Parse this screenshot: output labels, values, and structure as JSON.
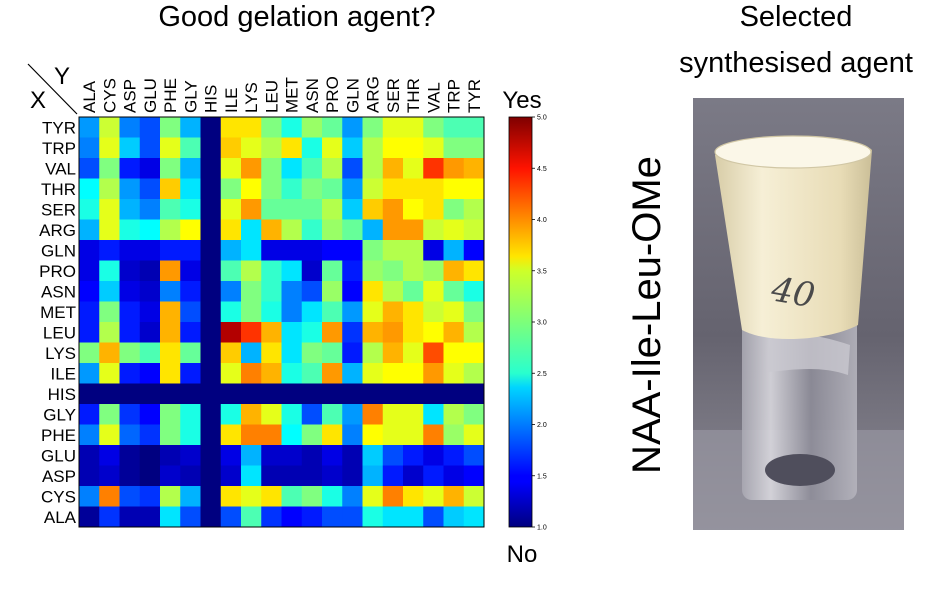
{
  "chart_data": {
    "type": "heatmap",
    "title": "Good gelation agent?",
    "x_axis_symbol": "Y",
    "y_axis_symbol": "X",
    "x": [
      "ALA",
      "CYS",
      "ASP",
      "GLU",
      "PHE",
      "GLY",
      "HIS",
      "ILE",
      "LYS",
      "LEU",
      "MET",
      "ASN",
      "PRO",
      "GLN",
      "ARG",
      "SER",
      "THR",
      "VAL",
      "TRP",
      "TYR"
    ],
    "y": [
      "TYR",
      "TRP",
      "VAL",
      "THR",
      "SER",
      "ARG",
      "GLN",
      "PRO",
      "ASN",
      "MET",
      "LEU",
      "LYS",
      "ILE",
      "HIS",
      "GLY",
      "PHE",
      "GLU",
      "ASP",
      "CYS",
      "ALA"
    ],
    "values": [
      [
        2.1,
        3.3,
        2.0,
        1.8,
        3.0,
        2.2,
        1.0,
        3.6,
        3.6,
        3.0,
        2.6,
        3.1,
        2.9,
        2.1,
        3.0,
        3.4,
        3.4,
        3.0,
        2.8,
        2.8
      ],
      [
        2.0,
        3.4,
        2.3,
        1.8,
        3.4,
        2.8,
        1.0,
        3.7,
        3.4,
        3.2,
        3.6,
        2.6,
        3.4,
        2.3,
        3.2,
        3.5,
        3.5,
        3.4,
        3.0,
        3.0
      ],
      [
        1.8,
        3.0,
        1.6,
        1.4,
        3.0,
        2.2,
        1.0,
        3.4,
        3.9,
        3.0,
        2.4,
        2.8,
        3.2,
        1.8,
        3.2,
        3.8,
        3.4,
        4.3,
        3.9,
        3.8
      ],
      [
        2.5,
        3.2,
        2.1,
        1.8,
        3.7,
        2.4,
        1.0,
        3.0,
        3.5,
        3.0,
        2.7,
        3.0,
        2.9,
        2.1,
        3.3,
        3.6,
        3.6,
        3.6,
        3.5,
        3.5
      ],
      [
        2.6,
        3.4,
        2.2,
        2.0,
        2.8,
        2.6,
        1.0,
        3.4,
        3.9,
        2.9,
        2.9,
        2.9,
        3.2,
        2.3,
        3.7,
        3.9,
        3.5,
        3.6,
        3.0,
        3.2
      ],
      [
        2.2,
        3.4,
        2.6,
        2.5,
        3.2,
        3.5,
        1.0,
        3.6,
        2.4,
        3.8,
        3.2,
        2.7,
        3.1,
        2.9,
        2.2,
        3.9,
        3.9,
        3.3,
        3.4,
        3.3
      ],
      [
        1.4,
        1.6,
        1.4,
        1.4,
        1.6,
        1.6,
        1.0,
        2.2,
        2.4,
        1.4,
        1.4,
        1.4,
        1.5,
        1.5,
        3.0,
        3.2,
        3.2,
        1.4,
        2.2,
        1.5
      ],
      [
        1.4,
        2.6,
        1.3,
        1.2,
        3.9,
        1.4,
        1.0,
        2.8,
        3.2,
        2.7,
        2.4,
        1.3,
        2.9,
        1.6,
        3.1,
        3.0,
        3.2,
        3.1,
        3.8,
        3.6
      ],
      [
        1.5,
        2.3,
        1.4,
        1.3,
        2.0,
        1.6,
        1.0,
        2.0,
        3.0,
        2.7,
        2.0,
        1.8,
        3.1,
        1.5,
        3.6,
        3.2,
        2.9,
        3.4,
        2.9,
        2.6
      ],
      [
        1.6,
        3.0,
        1.6,
        1.4,
        3.8,
        1.8,
        1.0,
        2.6,
        3.0,
        2.6,
        2.0,
        2.4,
        2.8,
        2.1,
        3.4,
        3.8,
        3.6,
        3.3,
        3.4,
        3.0
      ],
      [
        1.6,
        3.2,
        1.6,
        1.3,
        3.8,
        1.6,
        1.0,
        4.8,
        4.3,
        3.8,
        2.4,
        2.6,
        3.9,
        1.7,
        3.8,
        3.9,
        3.6,
        3.5,
        3.8,
        3.2
      ],
      [
        3.0,
        3.8,
        3.0,
        2.8,
        3.6,
        2.9,
        1.0,
        3.7,
        2.2,
        3.6,
        2.4,
        3.0,
        2.9,
        1.6,
        3.2,
        3.8,
        3.4,
        4.2,
        3.5,
        3.5
      ],
      [
        2.1,
        3.4,
        1.6,
        1.5,
        3.6,
        1.6,
        1.0,
        3.4,
        4.0,
        3.8,
        2.6,
        2.8,
        3.9,
        2.2,
        3.4,
        3.5,
        3.5,
        3.9,
        3.4,
        3.2
      ],
      [
        1.0,
        1.0,
        1.0,
        1.0,
        1.0,
        1.0,
        1.0,
        1.0,
        1.0,
        1.0,
        1.0,
        1.0,
        1.0,
        1.0,
        1.0,
        1.0,
        1.0,
        1.0,
        1.0,
        1.0
      ],
      [
        1.6,
        3.0,
        1.7,
        1.5,
        3.0,
        2.6,
        1.0,
        2.6,
        3.8,
        3.4,
        2.6,
        1.8,
        2.8,
        2.1,
        4.0,
        3.4,
        3.4,
        2.4,
        3.2,
        3.0
      ],
      [
        2.0,
        3.4,
        1.9,
        1.7,
        3.0,
        2.6,
        1.0,
        3.6,
        4.0,
        4.0,
        2.5,
        3.0,
        3.6,
        2.0,
        3.5,
        3.4,
        3.4,
        4.0,
        3.1,
        3.4
      ],
      [
        1.2,
        1.4,
        1.1,
        1.0,
        1.2,
        1.3,
        1.0,
        1.4,
        2.2,
        1.3,
        1.3,
        1.2,
        1.4,
        1.2,
        2.3,
        1.8,
        1.6,
        1.4,
        1.6,
        1.8
      ],
      [
        1.2,
        1.3,
        1.1,
        1.0,
        1.3,
        1.2,
        1.0,
        1.3,
        2.4,
        1.2,
        1.2,
        1.2,
        1.3,
        1.2,
        2.2,
        1.6,
        1.3,
        1.6,
        1.4,
        1.5
      ],
      [
        2.0,
        4.0,
        1.8,
        1.7,
        3.2,
        2.2,
        1.0,
        3.6,
        3.4,
        3.6,
        2.8,
        3.0,
        2.6,
        2.0,
        3.4,
        4.0,
        3.6,
        3.4,
        3.8,
        3.3
      ],
      [
        1.1,
        1.7,
        1.2,
        1.2,
        2.4,
        1.8,
        1.0,
        1.8,
        2.8,
        1.7,
        1.5,
        1.6,
        1.8,
        1.8,
        2.6,
        2.4,
        2.4,
        1.8,
        2.3,
        2.4
      ]
    ],
    "colorbar": {
      "min": 1.0,
      "max": 5.0,
      "ticks": [
        "1.0",
        "1.5",
        "2.0",
        "2.5",
        "3.0",
        "3.5",
        "4.0",
        "4.5",
        "5.0"
      ],
      "top_label": "Yes",
      "bottom_label": "No",
      "colormap": "jet"
    },
    "grid": false
  },
  "photo": {
    "header_line1": "Selected",
    "header_line2": "synthesised agent",
    "vertical_label": "NAA-Ile-Leu-OMe",
    "vial_marking": "40"
  },
  "colors": {
    "background": "#ffffff",
    "photo_backdrop": "#6d6b7a",
    "gel_cap": "#efe6c9"
  }
}
